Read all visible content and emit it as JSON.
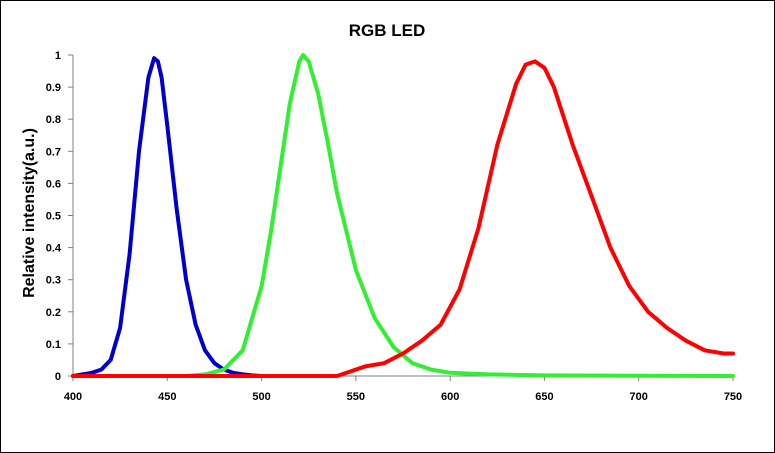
{
  "chart_data": {
    "type": "line",
    "title": "RGB LED",
    "xlabel": "",
    "ylabel": "Relative intensity(a.u.)",
    "xlim": [
      400,
      750
    ],
    "ylim": [
      0,
      1
    ],
    "x_ticks": [
      "400",
      "450",
      "500",
      "550",
      "600",
      "650",
      "700",
      "750"
    ],
    "y_ticks": [
      "0",
      "0.1",
      "0.2",
      "0.3",
      "0.4",
      "0.5",
      "0.6",
      "0.7",
      "0.8",
      "0.9",
      "1"
    ],
    "grid": false,
    "legend": "none",
    "series": [
      {
        "color": "#0000cc",
        "x": [
          400,
          410,
          415,
          420,
          425,
          430,
          435,
          440,
          443,
          445,
          447,
          450,
          455,
          460,
          465,
          470,
          475,
          480,
          485,
          490,
          495,
          500
        ],
        "values": [
          0.0,
          0.01,
          0.02,
          0.05,
          0.15,
          0.38,
          0.7,
          0.93,
          0.99,
          0.98,
          0.93,
          0.78,
          0.52,
          0.3,
          0.16,
          0.08,
          0.04,
          0.02,
          0.01,
          0.005,
          0.002,
          0.0
        ]
      },
      {
        "color": "#33ee33",
        "x": [
          460,
          470,
          480,
          490,
          500,
          505,
          510,
          515,
          520,
          522,
          525,
          530,
          535,
          540,
          550,
          560,
          570,
          580,
          590,
          600,
          620,
          650,
          700,
          750
        ],
        "values": [
          0.0,
          0.005,
          0.02,
          0.08,
          0.28,
          0.45,
          0.65,
          0.85,
          0.98,
          1.0,
          0.98,
          0.88,
          0.73,
          0.57,
          0.33,
          0.18,
          0.09,
          0.04,
          0.02,
          0.01,
          0.005,
          0.002,
          0.001,
          0.0
        ]
      },
      {
        "color": "#ff0000",
        "x": [
          400,
          540,
          555,
          565,
          575,
          585,
          595,
          605,
          615,
          625,
          635,
          640,
          645,
          650,
          655,
          665,
          675,
          685,
          695,
          705,
          715,
          725,
          735,
          745,
          750
        ],
        "values": [
          0.0,
          0.0,
          0.03,
          0.04,
          0.07,
          0.11,
          0.16,
          0.27,
          0.46,
          0.72,
          0.91,
          0.97,
          0.98,
          0.96,
          0.9,
          0.72,
          0.56,
          0.4,
          0.28,
          0.2,
          0.15,
          0.11,
          0.08,
          0.07,
          0.07
        ]
      }
    ]
  }
}
